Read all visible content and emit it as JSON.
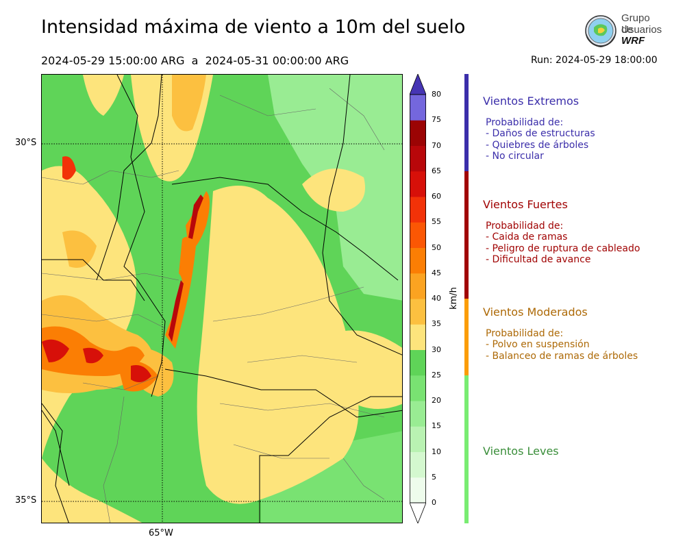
{
  "header": {
    "title": "Intensidad máxima de viento a 10m del suelo",
    "period": "2024-05-29 15:00:00 ARG  a  2024-05-31 00:00:00 ARG",
    "run": "Run: 2024-05-29 18:00:00"
  },
  "logo": {
    "line1": "Grupo de",
    "line2": "Usuarios",
    "line3": "WRF"
  },
  "map": {
    "lat_labels": [
      "30°S",
      "35°S"
    ],
    "lon_labels": [
      "65°W"
    ]
  },
  "colorbar": {
    "unit": "km/h",
    "ticks": [
      "80",
      "75",
      "70",
      "65",
      "60",
      "55",
      "50",
      "45",
      "40",
      "35",
      "30",
      "25",
      "20",
      "15",
      "10",
      "5",
      "0"
    ],
    "colors": [
      "#eefcec",
      "#d4f8cf",
      "#b9f2b2",
      "#99ec93",
      "#79e272",
      "#5fd458",
      "#fde47c",
      "#fcc040",
      "#fba321",
      "#fb7e04",
      "#fb5704",
      "#f23208",
      "#d71009",
      "#b8070a",
      "#9b0404",
      "#7467dd",
      "#5c49c6",
      "#4635b4"
    ]
  },
  "categories": [
    {
      "title": "Vientos Extremos",
      "color": "#3b2eaa",
      "lines": [
        "Probabilidad de:",
        "- Daños de estructuras",
        "- Quiebres de árboles",
        "- No circular"
      ]
    },
    {
      "title": "Vientos Fuertes",
      "color": "#a10404",
      "lines": [
        "Probabilidad de:",
        "- Caida de ramas",
        "- Peligro de ruptura de cableado",
        "- Dificultad de avance"
      ]
    },
    {
      "title": "Vientos Moderados",
      "color": "#ad6906",
      "lines": [
        "Probabilidad de:",
        "- Polvo en suspensión",
        "- Balanceo de ramas de árboles"
      ]
    },
    {
      "title": "Vientos Leves",
      "color": "#3a8e3a",
      "lines": []
    }
  ],
  "category_bar_colors": [
    "#3b2eaa",
    "#a10404",
    "#fb9d06",
    "#79ec72"
  ]
}
